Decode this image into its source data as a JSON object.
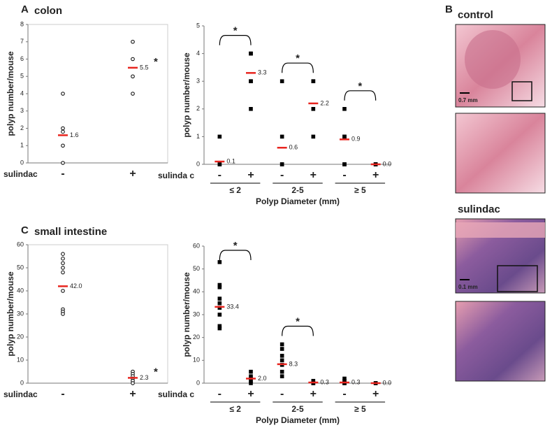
{
  "chart_data": [
    {
      "type": "strip",
      "panel": "A",
      "title": "colon",
      "ylabel": "polyp number/mouse",
      "row_label": "sulindac",
      "ylim": [
        0,
        8
      ],
      "yticks": [
        0,
        1,
        2,
        3,
        4,
        5,
        6,
        7,
        8
      ],
      "marker": "circle",
      "frame": true,
      "mean_color": "#e8251f",
      "groups": [
        {
          "name": "-",
          "values": [
            4,
            2,
            1.8,
            1,
            0
          ],
          "mean": 1.6
        },
        {
          "name": "+",
          "values": [
            7,
            6,
            5,
            4
          ],
          "mean": 5.5,
          "star": "*"
        }
      ]
    },
    {
      "type": "grouped_strip",
      "ylabel": "polyp number/mouse",
      "row_label": "sulinda c",
      "xlabel": "Polyp Diameter (mm)",
      "ylim": [
        0,
        5
      ],
      "yticks": [
        0,
        1,
        2,
        3,
        4,
        5
      ],
      "marker": "square",
      "frame": false,
      "mean_color": "#e8251f",
      "groups": [
        {
          "name": "≤ 2",
          "star": "*",
          "subgroups": [
            {
              "name": "-",
              "values": [
                1,
                0,
                0
              ],
              "mean": 0.1
            },
            {
              "name": "+",
              "values": [
                4,
                4,
                3,
                3,
                2
              ],
              "mean": 3.3
            }
          ]
        },
        {
          "name": "2-5",
          "star": "*",
          "subgroups": [
            {
              "name": "-",
              "values": [
                3,
                1,
                0,
                0
              ],
              "mean": 0.6
            },
            {
              "name": "+",
              "values": [
                3,
                3,
                2,
                1
              ],
              "mean": 2.2
            }
          ]
        },
        {
          "name": "≥ 5",
          "star": "*",
          "subgroups": [
            {
              "name": "-",
              "values": [
                2,
                1,
                1,
                0,
                0
              ],
              "mean": 0.9
            },
            {
              "name": "+",
              "values": [
                0,
                0,
                0
              ],
              "mean": 0,
              "mean_label": "0.0"
            }
          ]
        }
      ]
    },
    {
      "type": "strip",
      "panel": "C",
      "title": "small intestine",
      "ylabel": "polyp number/mouse",
      "row_label": "sulindac",
      "ylim": [
        0,
        60
      ],
      "yticks": [
        0,
        10,
        20,
        30,
        40,
        50,
        60
      ],
      "marker": "circle",
      "frame": true,
      "mean_color": "#e8251f",
      "groups": [
        {
          "name": "-",
          "values": [
            56,
            54,
            52,
            50,
            48,
            40,
            32,
            31,
            30
          ],
          "mean": 42,
          "mean_label": "42.0"
        },
        {
          "name": "+",
          "values": [
            5,
            4,
            3,
            2,
            1,
            0
          ],
          "mean": 2.3,
          "star": "*"
        }
      ]
    },
    {
      "type": "grouped_strip",
      "ylabel": "polyp number/mouse",
      "row_label": "sulinda c",
      "xlabel": "Polyp Diameter (mm)",
      "ylim": [
        0,
        60
      ],
      "yticks": [
        0,
        10,
        20,
        30,
        40,
        50,
        60
      ],
      "marker": "square",
      "frame": false,
      "mean_color": "#e8251f",
      "groups": [
        {
          "name": "≤ 2",
          "star": "*",
          "subgroups": [
            {
              "name": "-",
              "values": [
                53,
                43,
                42,
                37,
                35,
                33,
                30,
                25,
                24
              ],
              "mean": 33.4
            },
            {
              "name": "+",
              "values": [
                5,
                3,
                2,
                1,
                0
              ],
              "mean": 2,
              "mean_label": "2.0"
            }
          ]
        },
        {
          "name": "2-5",
          "star": "*",
          "subgroups": [
            {
              "name": "-",
              "values": [
                17,
                15,
                12,
                10,
                8,
                5,
                3
              ],
              "mean": 8.3
            },
            {
              "name": "+",
              "values": [
                1,
                0,
                0
              ],
              "mean": 0.3
            }
          ]
        },
        {
          "name": "≥ 5",
          "subgroups": [
            {
              "name": "-",
              "values": [
                2,
                1,
                0,
                0
              ],
              "mean": 0.3
            },
            {
              "name": "+",
              "values": [
                0,
                0
              ],
              "mean": 0,
              "mean_label": "0.0"
            }
          ]
        }
      ]
    }
  ],
  "panel_b": {
    "label": "B",
    "images": [
      {
        "title": "control",
        "scale": "0.7 mm"
      },
      {
        "title": "sulindac",
        "scale": "0.1 mm"
      }
    ]
  }
}
